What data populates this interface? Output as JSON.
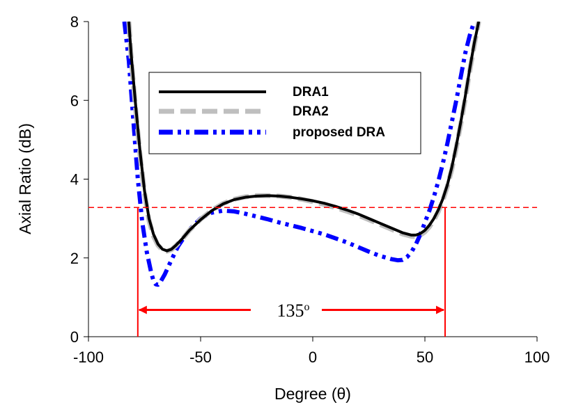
{
  "chart_data": {
    "type": "line",
    "title": "",
    "xlabel": "Degree (θ)",
    "ylabel": "Axial Ratio (dB)",
    "xlim": [
      -100,
      100
    ],
    "ylim": [
      0,
      8
    ],
    "xticks": [
      -100,
      -50,
      0,
      50,
      100
    ],
    "yticks": [
      0,
      2,
      4,
      6,
      8
    ],
    "grid": false,
    "legend_position": "upper-center",
    "series": [
      {
        "name": "DRA1",
        "color": "#000000",
        "style": "solid",
        "x": [
          -82,
          -81,
          -79,
          -77,
          -75,
          -73,
          -71,
          -69,
          -67,
          -65,
          -63,
          -61,
          -58,
          -55,
          -50,
          -45,
          -40,
          -35,
          -30,
          -25,
          -20,
          -15,
          -10,
          -5,
          0,
          5,
          10,
          15,
          20,
          25,
          30,
          35,
          40,
          44,
          46,
          48,
          50,
          52,
          54,
          56,
          58,
          60,
          62,
          64,
          66,
          68,
          70,
          72,
          74
        ],
        "y": [
          8.0,
          7.2,
          5.9,
          4.7,
          3.7,
          3.0,
          2.6,
          2.35,
          2.22,
          2.18,
          2.22,
          2.32,
          2.5,
          2.7,
          2.97,
          3.2,
          3.37,
          3.48,
          3.54,
          3.57,
          3.58,
          3.57,
          3.54,
          3.5,
          3.45,
          3.39,
          3.31,
          3.22,
          3.12,
          3.0,
          2.88,
          2.76,
          2.64,
          2.58,
          2.58,
          2.62,
          2.7,
          2.83,
          3.0,
          3.22,
          3.5,
          3.85,
          4.3,
          4.85,
          5.45,
          6.1,
          6.8,
          7.45,
          8.0
        ]
      },
      {
        "name": "DRA2",
        "color": "#bfbfbf",
        "style": "dashed",
        "x": [
          -82,
          -81,
          -79,
          -77,
          -75,
          -73,
          -71,
          -69,
          -67,
          -65,
          -63,
          -61,
          -58,
          -55,
          -50,
          -45,
          -40,
          -35,
          -30,
          -25,
          -20,
          -15,
          -10,
          -5,
          0,
          5,
          10,
          15,
          20,
          25,
          30,
          35,
          40,
          44,
          46,
          48,
          50,
          52,
          54,
          56,
          58,
          60,
          62,
          64,
          66,
          68,
          70,
          72,
          74
        ],
        "y": [
          8.0,
          7.1,
          5.8,
          4.6,
          3.65,
          2.95,
          2.55,
          2.32,
          2.2,
          2.17,
          2.21,
          2.31,
          2.49,
          2.7,
          2.98,
          3.21,
          3.38,
          3.49,
          3.55,
          3.58,
          3.58,
          3.57,
          3.54,
          3.49,
          3.43,
          3.36,
          3.28,
          3.19,
          3.09,
          2.97,
          2.85,
          2.73,
          2.61,
          2.55,
          2.54,
          2.58,
          2.66,
          2.79,
          2.96,
          3.18,
          3.46,
          3.81,
          4.25,
          4.8,
          5.4,
          6.05,
          6.75,
          7.4,
          8.0
        ]
      },
      {
        "name": "proposed DRA",
        "color": "#0000ff",
        "style": "dash-dot-dot",
        "x": [
          -84,
          -82,
          -80,
          -78,
          -76,
          -74,
          -72,
          -71,
          -70,
          -69,
          -68,
          -66,
          -63,
          -60,
          -55,
          -50,
          -45,
          -40,
          -35,
          -30,
          -25,
          -20,
          -15,
          -10,
          -5,
          0,
          5,
          10,
          15,
          20,
          25,
          30,
          35,
          38,
          40,
          42,
          44,
          46,
          48,
          50,
          52,
          54,
          56,
          58,
          60,
          62,
          64,
          66,
          68,
          70,
          72
        ],
        "y": [
          8.0,
          7.0,
          5.5,
          4.0,
          2.9,
          2.15,
          1.62,
          1.42,
          1.33,
          1.32,
          1.38,
          1.58,
          1.95,
          2.3,
          2.72,
          3.0,
          3.15,
          3.2,
          3.18,
          3.12,
          3.05,
          2.98,
          2.9,
          2.83,
          2.76,
          2.68,
          2.6,
          2.5,
          2.4,
          2.28,
          2.16,
          2.05,
          1.97,
          1.94,
          1.95,
          2.02,
          2.15,
          2.35,
          2.6,
          2.9,
          3.2,
          3.55,
          3.95,
          4.4,
          4.9,
          5.45,
          6.0,
          6.6,
          7.2,
          7.65,
          8.0
        ]
      }
    ],
    "annotations": {
      "threshold_y": 3.28,
      "threshold_color": "#ff0000",
      "bandwidth_left_x": -78,
      "bandwidth_right_x": 59,
      "arrow_y": 0.68,
      "arrow_color": "#ff0000",
      "bandwidth_label": "135",
      "bandwidth_label_sup": "o"
    }
  }
}
